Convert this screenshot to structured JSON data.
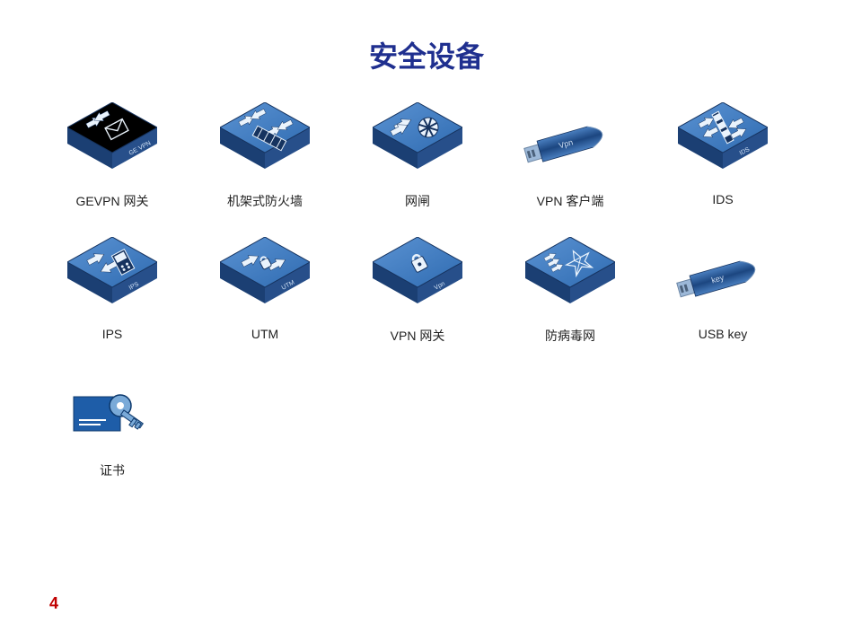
{
  "page": {
    "title": "安全设备",
    "pageNumber": "4",
    "titleColor": "#1f2f8f",
    "pageNumColor": "#c00000",
    "bgColor": "#ffffff"
  },
  "style": {
    "box_top": "#2f6bb1",
    "box_top_light": "#5b93d3",
    "box_left": "#1b3f73",
    "box_right": "#274f8a",
    "arrow_fill": "#eaf3fc",
    "dongle_fill1": "#1c4680",
    "dongle_fill2": "#4a7fc0",
    "dongle_tip": "#9cb8d8",
    "cert_blue": "#1e5da8",
    "cert_light": "#7aaad8",
    "labelColor": "#222222",
    "labelFontSize": 14
  },
  "items": [
    {
      "key": "gevpn",
      "label": "GEVPN 网关",
      "type": "box",
      "tag": "GE VPN"
    },
    {
      "key": "rackfw",
      "label": "机架式防火墙",
      "type": "box",
      "tag": ""
    },
    {
      "key": "gap",
      "label": "网闸",
      "type": "box",
      "tag": ""
    },
    {
      "key": "vpncli",
      "label": "VPN 客户端",
      "type": "dongle",
      "tag": "Vpn"
    },
    {
      "key": "ids",
      "label": "IDS",
      "type": "box",
      "tag": "IDS"
    },
    {
      "key": "ips",
      "label": "IPS",
      "type": "box",
      "tag": "IPS"
    },
    {
      "key": "utm",
      "label": "UTM",
      "type": "box",
      "tag": "UTM"
    },
    {
      "key": "vpngw",
      "label": "VPN 网关",
      "type": "box",
      "tag": "Vpn"
    },
    {
      "key": "av",
      "label": "防病毒网",
      "type": "box",
      "tag": ""
    },
    {
      "key": "usbkey",
      "label": "USB key",
      "type": "dongle",
      "tag": "key"
    },
    {
      "key": "cert",
      "label": "证书",
      "type": "cert",
      "tag": ""
    }
  ]
}
